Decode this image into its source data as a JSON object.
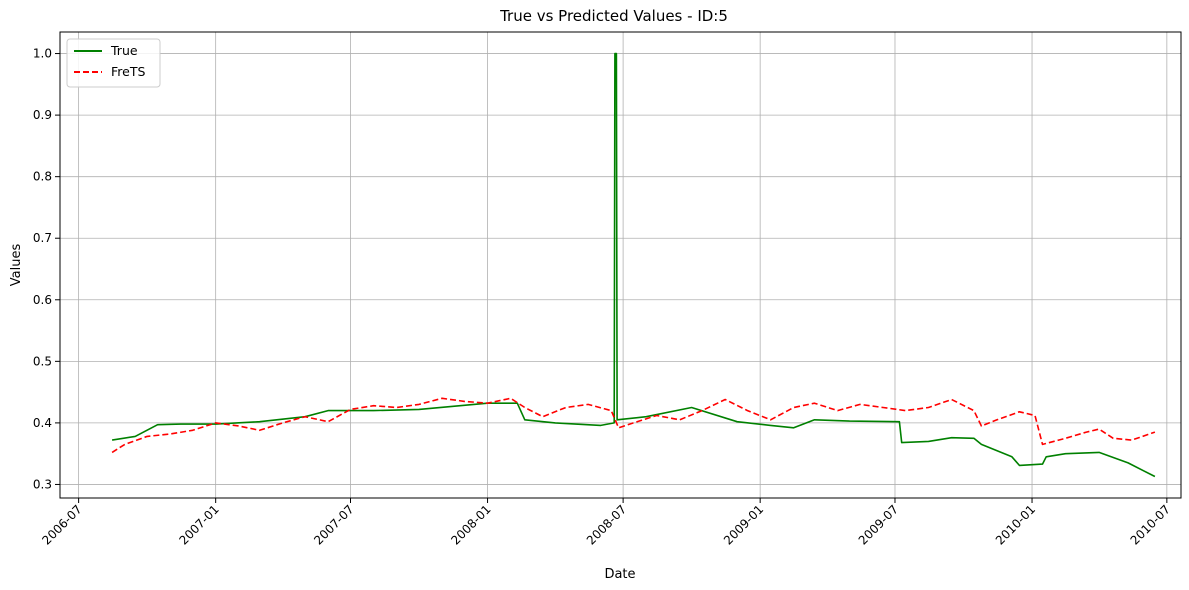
{
  "chart_data": {
    "type": "line",
    "title": "True vs Predicted Values - ID:5",
    "xlabel": "Date",
    "ylabel": "Values",
    "xlim": [
      "2006-06-06",
      "2010-07-20"
    ],
    "ylim": [
      0.278,
      1.035
    ],
    "grid": true,
    "legend_position": "top-left",
    "x_ticks": [
      "2006-07",
      "2007-01",
      "2007-07",
      "2008-01",
      "2008-07",
      "2009-01",
      "2009-07",
      "2010-01",
      "2010-07"
    ],
    "y_ticks": [
      "0.3",
      "0.4",
      "0.5",
      "0.6",
      "0.7",
      "0.8",
      "0.9",
      "1.0"
    ],
    "series": [
      {
        "name": "True",
        "color": "#008000",
        "style": "solid",
        "points": [
          [
            "2006-08-15",
            0.372
          ],
          [
            "2006-09-15",
            0.378
          ],
          [
            "2006-10-15",
            0.397
          ],
          [
            "2006-11-15",
            0.398
          ],
          [
            "2007-01-01",
            0.398
          ],
          [
            "2007-03-01",
            0.402
          ],
          [
            "2007-05-01",
            0.41
          ],
          [
            "2007-06-01",
            0.42
          ],
          [
            "2007-08-01",
            0.42
          ],
          [
            "2007-10-01",
            0.422
          ],
          [
            "2008-01-01",
            0.432
          ],
          [
            "2008-02-10",
            0.432
          ],
          [
            "2008-02-20",
            0.405
          ],
          [
            "2008-04-01",
            0.4
          ],
          [
            "2008-06-01",
            0.396
          ],
          [
            "2008-06-19",
            0.4
          ],
          [
            "2008-06-20",
            1.0
          ],
          [
            "2008-06-22",
            1.0
          ],
          [
            "2008-06-23",
            0.405
          ],
          [
            "2008-08-01",
            0.41
          ],
          [
            "2008-10-01",
            0.425
          ],
          [
            "2008-12-01",
            0.402
          ],
          [
            "2009-01-15",
            0.396
          ],
          [
            "2009-02-15",
            0.392
          ],
          [
            "2009-03-15",
            0.405
          ],
          [
            "2009-05-01",
            0.403
          ],
          [
            "2009-07-07",
            0.402
          ],
          [
            "2009-07-10",
            0.368
          ],
          [
            "2009-08-15",
            0.37
          ],
          [
            "2009-09-15",
            0.376
          ],
          [
            "2009-10-15",
            0.375
          ],
          [
            "2009-10-25",
            0.365
          ],
          [
            "2009-12-05",
            0.345
          ],
          [
            "2009-12-15",
            0.331
          ],
          [
            "2010-01-15",
            0.333
          ],
          [
            "2010-01-20",
            0.345
          ],
          [
            "2010-02-15",
            0.35
          ],
          [
            "2010-04-01",
            0.352
          ],
          [
            "2010-05-10",
            0.335
          ],
          [
            "2010-06-15",
            0.313
          ]
        ]
      },
      {
        "name": "FreTS",
        "color": "#ff0000",
        "style": "dashed",
        "points": [
          [
            "2006-08-15",
            0.352
          ],
          [
            "2006-09-01",
            0.365
          ],
          [
            "2006-10-01",
            0.378
          ],
          [
            "2006-11-01",
            0.382
          ],
          [
            "2006-12-01",
            0.388
          ],
          [
            "2007-01-01",
            0.4
          ],
          [
            "2007-02-01",
            0.395
          ],
          [
            "2007-03-01",
            0.388
          ],
          [
            "2007-04-01",
            0.4
          ],
          [
            "2007-05-01",
            0.41
          ],
          [
            "2007-06-01",
            0.402
          ],
          [
            "2007-07-01",
            0.422
          ],
          [
            "2007-08-01",
            0.428
          ],
          [
            "2007-09-01",
            0.425
          ],
          [
            "2007-10-01",
            0.43
          ],
          [
            "2007-11-01",
            0.44
          ],
          [
            "2007-12-01",
            0.435
          ],
          [
            "2008-01-01",
            0.432
          ],
          [
            "2008-02-01",
            0.44
          ],
          [
            "2008-02-20",
            0.425
          ],
          [
            "2008-03-15",
            0.41
          ],
          [
            "2008-04-15",
            0.425
          ],
          [
            "2008-05-15",
            0.43
          ],
          [
            "2008-06-15",
            0.42
          ],
          [
            "2008-06-25",
            0.392
          ],
          [
            "2008-07-15",
            0.4
          ],
          [
            "2008-08-15",
            0.412
          ],
          [
            "2008-09-15",
            0.405
          ],
          [
            "2008-10-15",
            0.42
          ],
          [
            "2008-11-15",
            0.438
          ],
          [
            "2008-12-15",
            0.42
          ],
          [
            "2009-01-15",
            0.405
          ],
          [
            "2009-02-15",
            0.425
          ],
          [
            "2009-03-15",
            0.432
          ],
          [
            "2009-04-15",
            0.42
          ],
          [
            "2009-05-15",
            0.43
          ],
          [
            "2009-06-15",
            0.425
          ],
          [
            "2009-07-15",
            0.42
          ],
          [
            "2009-08-15",
            0.425
          ],
          [
            "2009-09-15",
            0.438
          ],
          [
            "2009-10-15",
            0.42
          ],
          [
            "2009-10-25",
            0.395
          ],
          [
            "2009-11-15",
            0.405
          ],
          [
            "2009-12-15",
            0.418
          ],
          [
            "2010-01-05",
            0.412
          ],
          [
            "2010-01-15",
            0.365
          ],
          [
            "2010-02-15",
            0.375
          ],
          [
            "2010-03-15",
            0.385
          ],
          [
            "2010-04-01",
            0.39
          ],
          [
            "2010-04-20",
            0.375
          ],
          [
            "2010-05-15",
            0.372
          ],
          [
            "2010-06-15",
            0.385
          ]
        ]
      }
    ]
  }
}
